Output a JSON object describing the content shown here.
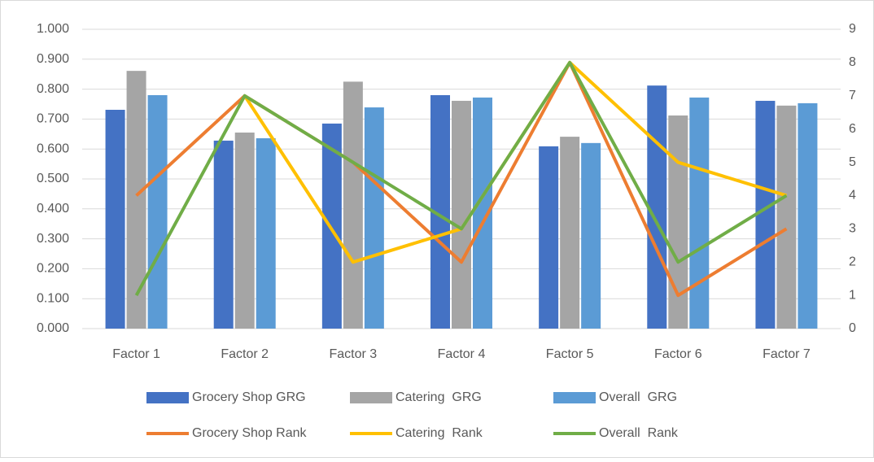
{
  "chart_data": {
    "type": "bar_line",
    "categories": [
      "Factor 1",
      "Factor 2",
      "Factor 3",
      "Factor 4",
      "Factor 5",
      "Factor 6",
      "Factor 7"
    ],
    "series": [
      {
        "name": "Grocery Shop GRG",
        "color": "#4472c4",
        "type": "bar",
        "values": [
          0.731,
          0.628,
          0.685,
          0.78,
          0.609,
          0.812,
          0.761
        ]
      },
      {
        "name": "Catering  GRG",
        "color": "#a5a5a5",
        "type": "bar",
        "values": [
          0.861,
          0.655,
          0.825,
          0.761,
          0.641,
          0.712,
          0.745
        ]
      },
      {
        "name": "Overall  GRG",
        "color": "#5b9bd5",
        "type": "bar",
        "values": [
          0.78,
          0.636,
          0.739,
          0.772,
          0.62,
          0.772,
          0.753
        ]
      },
      {
        "name": "Grocery Shop Rank",
        "color": "#ed7d31",
        "type": "line",
        "axis": "y2",
        "values": [
          4,
          7,
          5,
          2,
          8,
          1,
          3
        ]
      },
      {
        "name": "Catering  Rank",
        "color": "#ffc000",
        "type": "line",
        "axis": "y2",
        "values": [
          null,
          7,
          2,
          3,
          8,
          5,
          4
        ]
      },
      {
        "name": "Overall  Rank",
        "color": "#70ad47",
        "type": "line",
        "axis": "y2",
        "values": [
          1,
          7,
          5,
          3,
          8,
          2,
          4
        ]
      }
    ],
    "ylim": [
      0,
      1
    ],
    "yticks": [
      {
        "value": 0,
        "label": "0.000"
      },
      {
        "value": 0.1,
        "label": "0.100"
      },
      {
        "value": 0.2,
        "label": "0.200"
      },
      {
        "value": 0.3,
        "label": "0.300"
      },
      {
        "value": 0.4,
        "label": "0.400"
      },
      {
        "value": 0.5,
        "label": "0.500"
      },
      {
        "value": 0.6,
        "label": "0.600"
      },
      {
        "value": 0.7,
        "label": "0.700"
      },
      {
        "value": 0.8,
        "label": "0.800"
      },
      {
        "value": 0.9,
        "label": "0.900"
      },
      {
        "value": 1,
        "label": "1.000"
      }
    ],
    "y2lim": [
      0,
      9
    ],
    "y2ticks": [
      0,
      1,
      2,
      3,
      4,
      5,
      6,
      7,
      8,
      9
    ],
    "grid": true,
    "legend": "bottom"
  }
}
